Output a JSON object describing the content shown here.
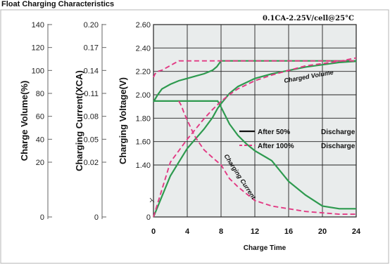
{
  "title": "Float Charging Characteristics",
  "condition_text": "0.1CA-2.25V/cell@25°C",
  "colors": {
    "after_50": "#2e9a4f",
    "after_100": "#e23a84",
    "plot_bg": "#e9ecec"
  },
  "chart_data": {
    "type": "line",
    "xlabel": "Charge Time",
    "xlim": [
      0,
      24
    ],
    "x_ticks": [
      "0",
      "4",
      "8",
      "12",
      "16",
      "20",
      "24"
    ],
    "axes": {
      "volume": {
        "label": "Charge Volume(%)",
        "ticks": [
          "140",
          "120",
          "100",
          "80",
          "60",
          "40",
          "20",
          "0"
        ]
      },
      "current": {
        "label": "Charging Current(XCA)",
        "ticks": [
          "0.20",
          "0.17",
          "0.14",
          "0.11",
          "0.08",
          "0.05",
          "0.02",
          "0"
        ]
      },
      "voltage": {
        "label": "Charging Voltage(V)",
        "ticks": [
          "2.60",
          "2.40",
          "2.20",
          "2.00",
          "1.80",
          "1.60",
          "1.40",
          "0"
        ]
      }
    },
    "legend": [
      {
        "line": "solid",
        "label": "After 50%",
        "suffix": "Discharge"
      },
      {
        "line": "dashed",
        "label": "After 100%",
        "suffix": "Discharge"
      }
    ],
    "curve_labels": {
      "volume": "Charged Volume",
      "current": "Charging Current"
    },
    "series": [
      {
        "name": "voltage-after-50",
        "group": "after_50",
        "axis": "voltage",
        "x": [
          0,
          0.5,
          1,
          2,
          3,
          4,
          5,
          6,
          7,
          7.5,
          7.8,
          8,
          12,
          16,
          20,
          24
        ],
        "y": [
          1.94,
          2.0,
          2.05,
          2.09,
          2.12,
          2.14,
          2.16,
          2.18,
          2.21,
          2.24,
          2.27,
          2.29,
          2.29,
          2.29,
          2.29,
          2.29
        ]
      },
      {
        "name": "volume-after-50",
        "group": "after_50",
        "axis": "volume",
        "x": [
          0,
          2,
          4,
          6,
          7,
          7.6,
          8,
          9,
          10,
          12,
          14,
          16,
          18,
          20,
          22,
          24
        ],
        "y": [
          0,
          15,
          32,
          49,
          59,
          67,
          71,
          80,
          86,
          93,
          97,
          100,
          103,
          105,
          107,
          108
        ]
      },
      {
        "name": "current-after-50",
        "group": "after_50",
        "axis": "current",
        "x": [
          0,
          7,
          7.6,
          8,
          9,
          10,
          11,
          12,
          14,
          16,
          18,
          20,
          22,
          24
        ],
        "y": [
          0.1,
          0.1,
          0.1,
          0.092,
          0.07,
          0.055,
          0.044,
          0.035,
          0.022,
          0.013,
          0.008,
          0.004,
          0.003,
          0.003
        ]
      },
      {
        "name": "voltage-after-100",
        "group": "after_100",
        "axis": "voltage",
        "x": [
          0,
          0.2,
          0.5,
          1,
          1.5,
          2,
          2.5,
          3,
          8,
          12,
          16,
          20,
          24
        ],
        "y": [
          2.15,
          2.18,
          2.2,
          2.21,
          2.23,
          2.25,
          2.27,
          2.29,
          2.29,
          2.29,
          2.29,
          2.29,
          2.29
        ]
      },
      {
        "name": "volume-after-100",
        "group": "after_100",
        "axis": "volume",
        "x": [
          0,
          1,
          2,
          3,
          4,
          5,
          6,
          7,
          8,
          9,
          10,
          12,
          14,
          16,
          18,
          20,
          22,
          24
        ],
        "y": [
          0,
          10,
          20,
          30,
          40,
          49,
          58,
          66,
          73,
          79,
          84,
          91,
          96,
          100,
          104,
          106,
          108,
          111
        ]
      },
      {
        "name": "current-after-100",
        "group": "after_100",
        "axis": "current",
        "x": [
          3,
          3.3,
          3.6,
          4,
          4.5,
          5,
          6,
          7,
          8,
          9,
          10,
          12,
          14,
          16,
          18,
          20,
          22,
          24
        ],
        "y": [
          0.1,
          0.094,
          0.085,
          0.075,
          0.063,
          0.052,
          0.036,
          0.026,
          0.019,
          0.014,
          0.011,
          0.006,
          0.004,
          0.003,
          0.002,
          0.0015,
          0.001,
          0.001
        ]
      }
    ]
  }
}
